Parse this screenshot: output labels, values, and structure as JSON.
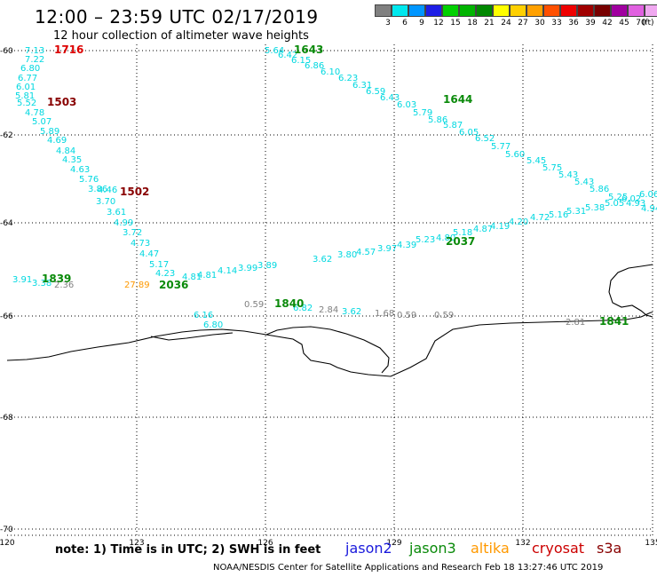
{
  "title": "12:00 – 23:59 UTC 02/17/2019",
  "subtitle": "12 hour collection of altimeter wave heights",
  "legend": {
    "unit": "(ft)",
    "colors": [
      "#808080",
      "#00e8ee",
      "#0096ff",
      "#1e1ee6",
      "#00d000",
      "#00b400",
      "#008800",
      "#ffff00",
      "#ffd000",
      "#ffa000",
      "#ff5000",
      "#ee0000",
      "#a00000",
      "#780000",
      "#a000a0",
      "#e060e0",
      "#f0a8f0",
      "#000000"
    ],
    "labels": [
      "3",
      "6",
      "9",
      "12",
      "15",
      "18",
      "21",
      "24",
      "27",
      "30",
      "33",
      "36",
      "39",
      "42",
      "45",
      "70"
    ]
  },
  "axes": {
    "lat_labels": [
      "-60",
      "-62",
      "-64",
      "-66",
      "-68",
      "-70"
    ],
    "lon_labels": [
      "120",
      "123",
      "126",
      "129",
      "132",
      "135"
    ]
  },
  "satellites": {
    "jason2": {
      "label": "jason2",
      "color": "#1a1adc"
    },
    "jason3": {
      "label": "jason3",
      "color": "#0a8a0a"
    },
    "altika": {
      "label": "altika",
      "color": "#ff9900"
    },
    "cryosat": {
      "label": "cryosat",
      "color": "#cc0000"
    },
    "s3a": {
      "label": "s3a",
      "color": "#880000"
    }
  },
  "note": "note:  1) Time is in UTC;  2) SWH is in feet",
  "credit": "NOAA/NESDIS Center for Satellite Applications and Research    Feb 18 13:27:46 UTC 2019",
  "track_labels": [
    {
      "text": "1716",
      "color": "#dd0000"
    },
    {
      "text": "1503",
      "color": "#880000"
    },
    {
      "text": "1502",
      "color": "#880000"
    },
    {
      "text": "1839",
      "color": "#0a8a0a"
    },
    {
      "text": "2036",
      "color": "#0a8a0a"
    },
    {
      "text": "1840",
      "color": "#0a8a0a"
    },
    {
      "text": "2037",
      "color": "#0a8a0a"
    },
    {
      "text": "1643",
      "color": "#0a8a0a"
    },
    {
      "text": "1644",
      "color": "#0a8a0a"
    },
    {
      "text": "1841",
      "color": "#0a8a0a"
    }
  ],
  "swh_values": [
    {
      "text": "7.13",
      "color": "#00d8e0"
    },
    {
      "text": "7.22",
      "color": "#00d8e0"
    },
    {
      "text": "6.80",
      "color": "#00d8e0"
    },
    {
      "text": "6.77",
      "color": "#00d8e0"
    },
    {
      "text": "6.01",
      "color": "#00d8e0"
    },
    {
      "text": "5.81",
      "color": "#00d8e0"
    },
    {
      "text": "5.52",
      "color": "#00d8e0"
    },
    {
      "text": "4.78",
      "color": "#00d8e0"
    },
    {
      "text": "5.07",
      "color": "#00d8e0"
    },
    {
      "text": "5.89",
      "color": "#00d8e0"
    },
    {
      "text": "4.69",
      "color": "#00d8e0"
    },
    {
      "text": "4.84",
      "color": "#00d8e0"
    },
    {
      "text": "4.35",
      "color": "#00d8e0"
    },
    {
      "text": "4.63",
      "color": "#00d8e0"
    },
    {
      "text": "5.76",
      "color": "#00d8e0"
    },
    {
      "text": "3.86",
      "color": "#00d8e0"
    },
    {
      "text": "4.46",
      "color": "#00d8e0"
    },
    {
      "text": "3.70",
      "color": "#00d8e0"
    },
    {
      "text": "3.61",
      "color": "#00d8e0"
    },
    {
      "text": "4.99",
      "color": "#00d8e0"
    },
    {
      "text": "3.72",
      "color": "#00d8e0"
    },
    {
      "text": "4.73",
      "color": "#00d8e0"
    },
    {
      "text": "4.47",
      "color": "#00d8e0"
    },
    {
      "text": "5.17",
      "color": "#00d8e0"
    },
    {
      "text": "4.23",
      "color": "#00d8e0"
    },
    {
      "text": "3.91",
      "color": "#00d8e0"
    },
    {
      "text": "3.38",
      "color": "#00d8e0"
    },
    {
      "text": "2.36",
      "color": "#808080"
    },
    {
      "text": "27.89",
      "color": "#ff9900"
    },
    {
      "text": "4.81",
      "color": "#00d8e0"
    },
    {
      "text": "4.81",
      "color": "#00d8e0"
    },
    {
      "text": "4.14",
      "color": "#00d8e0"
    },
    {
      "text": "3.99",
      "color": "#00d8e0"
    },
    {
      "text": "3.89",
      "color": "#00d8e0"
    },
    {
      "text": "6.16",
      "color": "#00d8e0"
    },
    {
      "text": "6.80",
      "color": "#00d8e0"
    },
    {
      "text": "0.59",
      "color": "#808080"
    },
    {
      "text": "6.82",
      "color": "#00d8e0"
    },
    {
      "text": "2.84",
      "color": "#808080"
    },
    {
      "text": "3.62",
      "color": "#00d8e0"
    },
    {
      "text": "1.68",
      "color": "#808080"
    },
    {
      "text": "0.59",
      "color": "#808080"
    },
    {
      "text": "0.59",
      "color": "#808080"
    },
    {
      "text": "3.62",
      "color": "#00d8e0"
    },
    {
      "text": "3.80",
      "color": "#00d8e0"
    },
    {
      "text": "4.57",
      "color": "#00d8e0"
    },
    {
      "text": "3.97",
      "color": "#00d8e0"
    },
    {
      "text": "4.39",
      "color": "#00d8e0"
    },
    {
      "text": "5.23",
      "color": "#00d8e0"
    },
    {
      "text": "4.80",
      "color": "#00d8e0"
    },
    {
      "text": "5.18",
      "color": "#00d8e0"
    },
    {
      "text": "4.87",
      "color": "#00d8e0"
    },
    {
      "text": "4.19",
      "color": "#00d8e0"
    },
    {
      "text": "4.20",
      "color": "#00d8e0"
    },
    {
      "text": "4.72",
      "color": "#00d8e0"
    },
    {
      "text": "5.16",
      "color": "#00d8e0"
    },
    {
      "text": "5.31",
      "color": "#00d8e0"
    },
    {
      "text": "5.38",
      "color": "#00d8e0"
    },
    {
      "text": "5.05",
      "color": "#00d8e0"
    },
    {
      "text": "6.02",
      "color": "#00d8e0"
    },
    {
      "text": "6.06",
      "color": "#00d8e0"
    },
    {
      "text": "5.64",
      "color": "#00d8e0"
    },
    {
      "text": "6.42",
      "color": "#00d8e0"
    },
    {
      "text": "6.15",
      "color": "#00d8e0"
    },
    {
      "text": "6.86",
      "color": "#00d8e0"
    },
    {
      "text": "6.10",
      "color": "#00d8e0"
    },
    {
      "text": "6.23",
      "color": "#00d8e0"
    },
    {
      "text": "6.31",
      "color": "#00d8e0"
    },
    {
      "text": "6.59",
      "color": "#00d8e0"
    },
    {
      "text": "6.43",
      "color": "#00d8e0"
    },
    {
      "text": "6.03",
      "color": "#00d8e0"
    },
    {
      "text": "5.79",
      "color": "#00d8e0"
    },
    {
      "text": "5.86",
      "color": "#00d8e0"
    },
    {
      "text": "5.87",
      "color": "#00d8e0"
    },
    {
      "text": "6.05",
      "color": "#00d8e0"
    },
    {
      "text": "6.52",
      "color": "#00d8e0"
    },
    {
      "text": "5.77",
      "color": "#00d8e0"
    },
    {
      "text": "5.60",
      "color": "#00d8e0"
    },
    {
      "text": "5.45",
      "color": "#00d8e0"
    },
    {
      "text": "5.75",
      "color": "#00d8e0"
    },
    {
      "text": "5.43",
      "color": "#00d8e0"
    },
    {
      "text": "5.43",
      "color": "#00d8e0"
    },
    {
      "text": "5.86",
      "color": "#00d8e0"
    },
    {
      "text": "5.25",
      "color": "#00d8e0"
    },
    {
      "text": "4.93",
      "color": "#00d8e0"
    },
    {
      "text": "4.94",
      "color": "#00d8e0"
    },
    {
      "text": "2.81",
      "color": "#808080"
    }
  ]
}
